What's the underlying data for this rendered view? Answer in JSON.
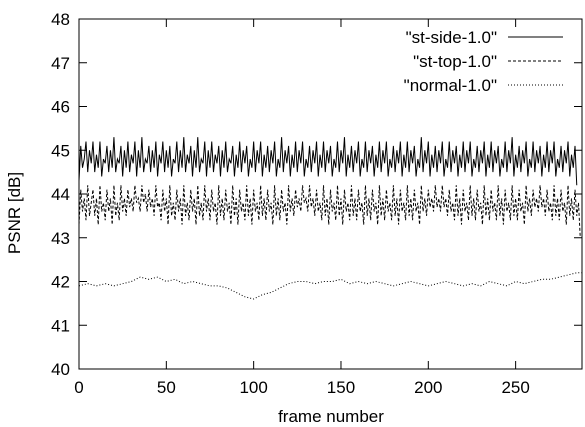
{
  "chart_data": {
    "type": "line",
    "xlabel": "frame number",
    "ylabel": "PSNR [dB]",
    "xlim": [
      0,
      288
    ],
    "ylim": [
      40,
      48
    ],
    "x_ticks": [
      0,
      50,
      100,
      150,
      200,
      250
    ],
    "y_ticks": [
      40,
      41,
      42,
      43,
      44,
      45,
      46,
      47,
      48
    ],
    "grid": false,
    "legend_position": "top-right",
    "series": [
      {
        "name": "\"st-side-1.0\"",
        "line_style": "solid",
        "x_start": 0,
        "x_step": 1,
        "values": [
          44.3,
          45.1,
          44.6,
          44.8,
          45.2,
          44.5,
          45.0,
          44.7,
          45.2,
          44.5,
          44.9,
          44.6,
          45.2,
          44.4,
          44.8,
          44.7,
          45.1,
          44.5,
          45.0,
          44.6,
          45.3,
          44.5,
          44.8,
          44.7,
          45.1,
          44.4,
          45.0,
          44.6,
          45.2,
          44.5,
          44.9,
          44.7,
          45.2,
          44.4,
          45.0,
          44.6,
          45.3,
          44.5,
          44.8,
          44.7,
          45.1,
          44.5,
          45.0,
          44.6,
          45.2,
          44.4,
          44.9,
          44.7,
          45.2,
          44.5,
          45.0,
          44.6,
          45.1,
          44.4,
          44.8,
          44.7,
          45.2,
          44.5,
          45.0,
          44.6,
          45.3,
          44.5,
          44.9,
          44.7,
          45.1,
          44.4,
          45.0,
          44.6,
          45.3,
          44.5,
          44.8,
          44.7,
          45.2,
          44.4,
          45.0,
          44.6,
          45.2,
          44.5,
          44.9,
          44.7,
          45.1,
          44.4,
          45.0,
          44.6,
          45.2,
          44.5,
          44.8,
          44.7,
          45.1,
          44.4,
          44.9,
          44.6,
          45.2,
          44.5,
          45.0,
          44.7,
          45.1,
          44.4,
          44.8,
          44.6,
          45.2,
          44.5,
          45.0,
          44.7,
          45.2,
          44.4,
          44.9,
          44.6,
          45.1,
          44.5,
          45.0,
          44.7,
          45.2,
          44.4,
          44.8,
          44.6,
          45.3,
          44.5,
          45.0,
          44.7,
          45.1,
          44.4,
          44.9,
          44.6,
          45.2,
          44.5,
          45.0,
          44.7,
          45.2,
          44.4,
          44.8,
          44.6,
          45.1,
          44.5,
          45.0,
          44.7,
          45.2,
          44.4,
          44.9,
          44.6,
          45.2,
          44.5,
          45.0,
          44.7,
          45.1,
          44.4,
          44.8,
          44.6,
          45.2,
          44.5,
          45.0,
          44.7,
          45.3,
          44.4,
          44.9,
          44.6,
          45.1,
          44.5,
          45.0,
          44.7,
          45.2,
          44.4,
          44.8,
          44.6,
          45.2,
          44.5,
          45.0,
          44.7,
          45.1,
          44.4,
          44.9,
          44.6,
          45.2,
          44.5,
          45.0,
          44.7,
          45.2,
          44.4,
          44.8,
          44.6,
          45.1,
          44.5,
          45.0,
          44.7,
          45.2,
          44.4,
          44.9,
          44.6,
          45.2,
          44.5,
          45.0,
          44.7,
          45.1,
          44.4,
          44.8,
          44.6,
          45.3,
          44.5,
          45.0,
          44.7,
          45.2,
          44.4,
          44.9,
          44.6,
          45.1,
          44.5,
          45.0,
          44.7,
          45.2,
          44.4,
          44.8,
          44.6,
          45.2,
          44.5,
          45.0,
          44.7,
          45.1,
          44.4,
          44.9,
          44.6,
          45.2,
          44.5,
          45.0,
          44.7,
          45.2,
          44.4,
          44.8,
          44.6,
          45.1,
          44.5,
          45.0,
          44.7,
          45.2,
          44.4,
          44.9,
          44.6,
          45.2,
          44.5,
          45.0,
          44.7,
          45.1,
          44.4,
          44.8,
          44.6,
          45.2,
          44.5,
          45.0,
          44.7,
          45.3,
          44.4,
          44.9,
          44.6,
          45.1,
          44.5,
          45.0,
          44.7,
          45.2,
          44.4,
          44.8,
          44.6,
          45.2,
          44.5,
          45.0,
          44.7,
          45.1,
          44.4,
          44.9,
          44.6,
          45.2,
          44.5,
          45.0,
          44.7,
          45.2,
          44.4,
          44.8,
          44.6,
          45.1,
          44.5,
          45.0,
          44.7,
          45.2,
          44.4,
          44.9,
          44.6,
          45.1,
          44.2
        ]
      },
      {
        "name": "\"st-top-1.0\"",
        "line_style": "dashed",
        "x_start": 0,
        "x_step": 1,
        "values": [
          43.3,
          44.1,
          43.6,
          43.9,
          43.4,
          44.2,
          43.5,
          43.8,
          44.1,
          43.5,
          43.9,
          43.3,
          44.2,
          43.6,
          43.8,
          43.4,
          44.1,
          43.6,
          43.9,
          43.3,
          44.2,
          43.5,
          43.8,
          43.4,
          44.2,
          43.6,
          43.9,
          43.5,
          44.1,
          43.7,
          43.9,
          43.6,
          44.2,
          43.8,
          43.9,
          43.6,
          44.2,
          43.8,
          44.0,
          43.6,
          44.1,
          43.7,
          43.9,
          43.5,
          44.2,
          43.7,
          43.8,
          43.4,
          44.1,
          43.6,
          43.9,
          43.3,
          44.2,
          43.5,
          43.8,
          43.4,
          44.1,
          43.6,
          43.9,
          43.3,
          44.2,
          43.5,
          43.8,
          43.4,
          44.1,
          43.6,
          43.9,
          43.3,
          44.2,
          43.5,
          43.8,
          43.4,
          44.2,
          43.6,
          43.9,
          43.4,
          44.1,
          43.6,
          43.8,
          43.3,
          44.2,
          43.5,
          43.9,
          43.4,
          44.1,
          43.6,
          43.8,
          43.3,
          44.2,
          43.5,
          43.9,
          43.3,
          44.1,
          43.6,
          43.8,
          43.4,
          44.2,
          43.5,
          43.9,
          43.3,
          44.1,
          43.6,
          43.8,
          43.4,
          44.2,
          43.5,
          43.9,
          43.4,
          44.1,
          43.6,
          43.8,
          43.3,
          44.2,
          43.5,
          43.9,
          43.4,
          44.1,
          43.6,
          43.8,
          43.3,
          44.2,
          43.6,
          43.9,
          43.5,
          44.1,
          43.7,
          43.9,
          43.6,
          44.2,
          43.8,
          43.9,
          43.6,
          44.2,
          43.7,
          43.9,
          43.5,
          44.1,
          43.6,
          43.8,
          43.4,
          44.2,
          43.5,
          43.9,
          43.3,
          44.1,
          43.6,
          43.8,
          43.4,
          44.2,
          43.5,
          43.9,
          43.3,
          44.1,
          43.6,
          43.8,
          43.4,
          44.2,
          43.5,
          43.9,
          43.4,
          44.1,
          43.6,
          43.8,
          43.3,
          44.2,
          43.5,
          43.9,
          43.4,
          44.1,
          43.6,
          43.8,
          43.3,
          44.2,
          43.5,
          43.9,
          43.4,
          44.1,
          43.6,
          43.8,
          43.4,
          44.2,
          43.5,
          43.9,
          43.3,
          44.1,
          43.6,
          43.8,
          43.4,
          44.2,
          43.5,
          43.9,
          43.4,
          44.1,
          43.6,
          43.8,
          43.3,
          44.2,
          43.6,
          43.9,
          43.5,
          44.1,
          43.7,
          43.9,
          43.6,
          44.2,
          43.7,
          43.9,
          43.6,
          44.2,
          43.7,
          43.9,
          43.5,
          44.1,
          43.6,
          43.8,
          43.4,
          44.2,
          43.5,
          43.9,
          43.3,
          44.1,
          43.6,
          43.8,
          43.4,
          44.2,
          43.5,
          43.9,
          43.4,
          44.1,
          43.6,
          43.8,
          43.3,
          44.2,
          43.5,
          43.9,
          43.4,
          44.1,
          43.6,
          43.8,
          43.4,
          44.2,
          43.5,
          43.9,
          43.3,
          44.1,
          43.6,
          43.8,
          43.4,
          44.2,
          43.5,
          43.9,
          43.4,
          44.1,
          43.6,
          43.8,
          43.3,
          44.2,
          43.6,
          43.9,
          43.5,
          44.1,
          43.7,
          43.9,
          43.6,
          44.2,
          43.7,
          43.9,
          43.5,
          44.1,
          43.6,
          43.8,
          43.4,
          44.2,
          43.5,
          43.9,
          43.4,
          44.1,
          43.6,
          43.8,
          43.3,
          44.2,
          43.5,
          43.9,
          43.4,
          44.1,
          43.5,
          43.8,
          43.0
        ]
      },
      {
        "name": "\"normal-1.0\"",
        "line_style": "dotted",
        "x": [
          0,
          5,
          10,
          15,
          20,
          25,
          30,
          35,
          40,
          45,
          50,
          55,
          60,
          65,
          70,
          75,
          80,
          85,
          90,
          95,
          100,
          105,
          110,
          115,
          120,
          125,
          130,
          135,
          140,
          145,
          150,
          155,
          160,
          165,
          170,
          175,
          180,
          185,
          190,
          195,
          200,
          205,
          210,
          215,
          220,
          225,
          230,
          235,
          240,
          245,
          250,
          255,
          260,
          265,
          270,
          275,
          280,
          285,
          288
        ],
        "values": [
          41.9,
          41.95,
          41.9,
          41.95,
          41.9,
          41.95,
          42.0,
          42.1,
          42.05,
          42.1,
          42.0,
          42.05,
          41.95,
          42.0,
          41.95,
          41.9,
          41.9,
          41.85,
          41.75,
          41.65,
          41.6,
          41.7,
          41.75,
          41.85,
          41.95,
          42.0,
          42.0,
          41.95,
          42.0,
          42.0,
          42.05,
          41.95,
          42.0,
          41.95,
          42.0,
          41.95,
          41.9,
          41.95,
          42.0,
          41.95,
          41.9,
          41.95,
          42.0,
          41.95,
          41.9,
          41.95,
          41.9,
          42.0,
          41.95,
          41.9,
          42.0,
          41.95,
          42.0,
          42.05,
          42.05,
          42.1,
          42.15,
          42.2,
          42.2
        ]
      }
    ]
  }
}
